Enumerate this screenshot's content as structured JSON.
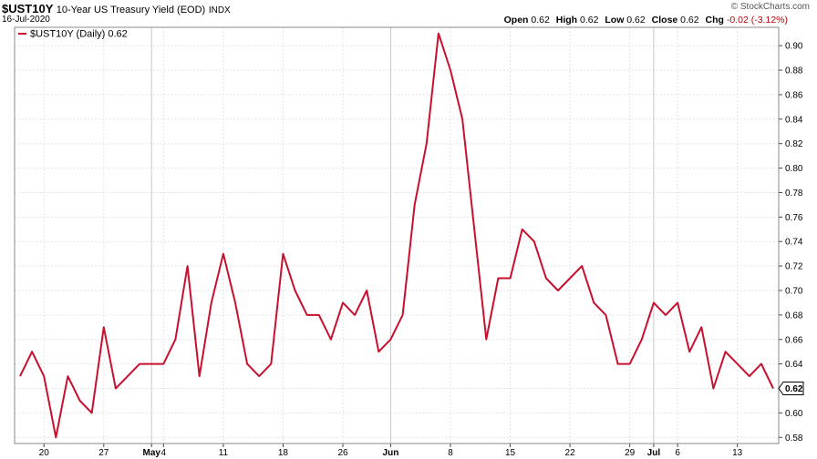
{
  "header": {
    "symbol": "$UST10Y",
    "description": "10-Year US Treasury Yield (EOD)",
    "exchange": "INDX",
    "date": "16-Jul-2020",
    "brand": "© StockCharts.com",
    "open_label": "Open",
    "open": "0.62",
    "high_label": "High",
    "high": "0.62",
    "low_label": "Low",
    "low": "0.62",
    "close_label": "Close",
    "close": "0.62",
    "chg_label": "Chg",
    "chg": "-0.02 (-3.12%)"
  },
  "chart_data": {
    "type": "line",
    "legend": "$UST10Y (Daily) 0.62",
    "legend_position": "top-left",
    "grid": true,
    "ylim": [
      0.575,
      0.915
    ],
    "y_ticks": [
      "0.58",
      "0.60",
      "0.62",
      "0.64",
      "0.66",
      "0.68",
      "0.70",
      "0.72",
      "0.74",
      "0.76",
      "0.78",
      "0.80",
      "0.82",
      "0.84",
      "0.86",
      "0.88",
      "0.90"
    ],
    "x_ticks": [
      {
        "label": "20",
        "index": 2,
        "bold": false
      },
      {
        "label": "27",
        "index": 7,
        "bold": false
      },
      {
        "label": "May",
        "index": 11,
        "bold": true
      },
      {
        "label": "4",
        "index": 12,
        "bold": false
      },
      {
        "label": "11",
        "index": 17,
        "bold": false
      },
      {
        "label": "18",
        "index": 22,
        "bold": false
      },
      {
        "label": "26",
        "index": 27,
        "bold": false
      },
      {
        "label": "Jun",
        "index": 31,
        "bold": true
      },
      {
        "label": "8",
        "index": 36,
        "bold": false
      },
      {
        "label": "15",
        "index": 41,
        "bold": false
      },
      {
        "label": "22",
        "index": 46,
        "bold": false
      },
      {
        "label": "29",
        "index": 51,
        "bold": false
      },
      {
        "label": "Jul",
        "index": 53,
        "bold": true
      },
      {
        "label": "6",
        "index": 55,
        "bold": false
      },
      {
        "label": "13",
        "index": 60,
        "bold": false
      }
    ],
    "series": [
      {
        "name": "$UST10Y",
        "color": "#c8102e",
        "values": [
          0.63,
          0.65,
          0.63,
          0.58,
          0.63,
          0.61,
          0.6,
          0.67,
          0.62,
          0.63,
          0.64,
          0.64,
          0.64,
          0.66,
          0.72,
          0.63,
          0.69,
          0.73,
          0.69,
          0.64,
          0.63,
          0.64,
          0.73,
          0.7,
          0.68,
          0.68,
          0.66,
          0.69,
          0.68,
          0.7,
          0.65,
          0.66,
          0.68,
          0.77,
          0.82,
          0.91,
          0.88,
          0.84,
          0.75,
          0.66,
          0.71,
          0.71,
          0.75,
          0.74,
          0.71,
          0.7,
          0.71,
          0.72,
          0.69,
          0.68,
          0.64,
          0.64,
          0.66,
          0.69,
          0.68,
          0.69,
          0.65,
          0.67,
          0.62,
          0.65,
          0.64,
          0.63,
          0.64,
          0.62
        ]
      }
    ],
    "last_value_label": "0.62"
  }
}
